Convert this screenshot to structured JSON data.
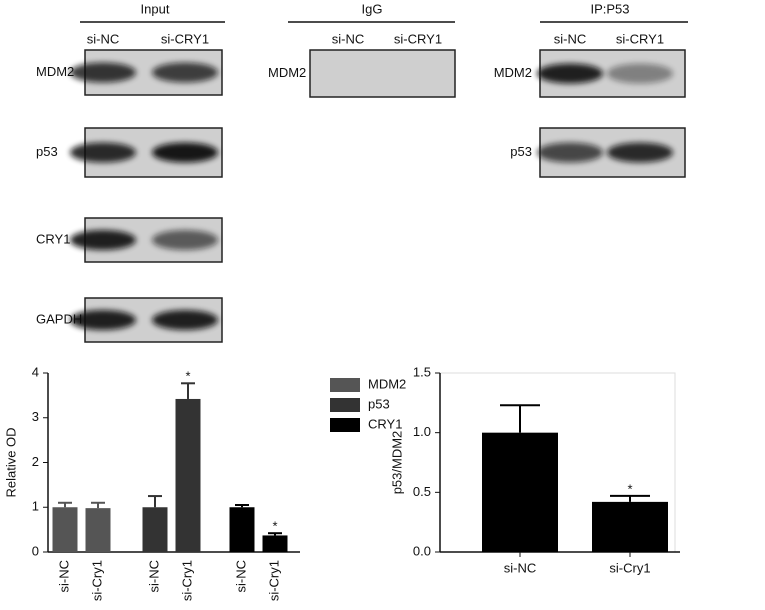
{
  "blots": {
    "panels": [
      {
        "title": "Input",
        "lanes": [
          "si-NC",
          "si-CRY1"
        ],
        "rows": [
          "MDM2",
          "p53",
          "CRY1",
          "GAPDH"
        ]
      },
      {
        "title": "IgG",
        "lanes": [
          "si-NC",
          "si-CRY1"
        ],
        "rows": [
          "MDM2"
        ]
      },
      {
        "title": "IP:P53",
        "lanes": [
          "si-NC",
          "si-CRY1"
        ],
        "rows": [
          "MDM2",
          "p53"
        ]
      }
    ]
  },
  "chart_data": [
    {
      "type": "bar",
      "y_label": "Relative OD",
      "categories": [
        "si-NC",
        "si-Cry1"
      ],
      "series": [
        {
          "name": "MDM2",
          "color": "#555555",
          "values": [
            1.0,
            0.98
          ],
          "errors": [
            0.1,
            0.12
          ]
        },
        {
          "name": "p53",
          "color": "#333333",
          "values": [
            1.0,
            3.42
          ],
          "errors": [
            0.25,
            0.35
          ]
        },
        {
          "name": "CRY1",
          "color": "#000000",
          "values": [
            1.0,
            0.37
          ],
          "errors": [
            0.05,
            0.05
          ]
        }
      ],
      "annotations": [
        {
          "text": "*",
          "series": 1,
          "category": 1
        },
        {
          "text": "*",
          "series": 2,
          "category": 1
        }
      ],
      "ylim": [
        0,
        4
      ],
      "yticks": [
        0,
        1,
        2,
        3,
        4
      ],
      "legend": "right"
    },
    {
      "type": "bar",
      "y_label": "p53/MDM2",
      "categories": [
        "si-NC",
        "si-Cry1"
      ],
      "values": [
        1.0,
        0.42
      ],
      "errors": [
        0.23,
        0.05
      ],
      "color": "#000000",
      "annotations": [
        {
          "text": "*",
          "category": 1
        }
      ],
      "ylim": [
        0,
        1.5
      ],
      "yticks": [
        {
          "value": 0,
          "label": "0.0"
        },
        0.5,
        {
          "value": 1,
          "label": "1.0"
        },
        1.5
      ]
    }
  ]
}
